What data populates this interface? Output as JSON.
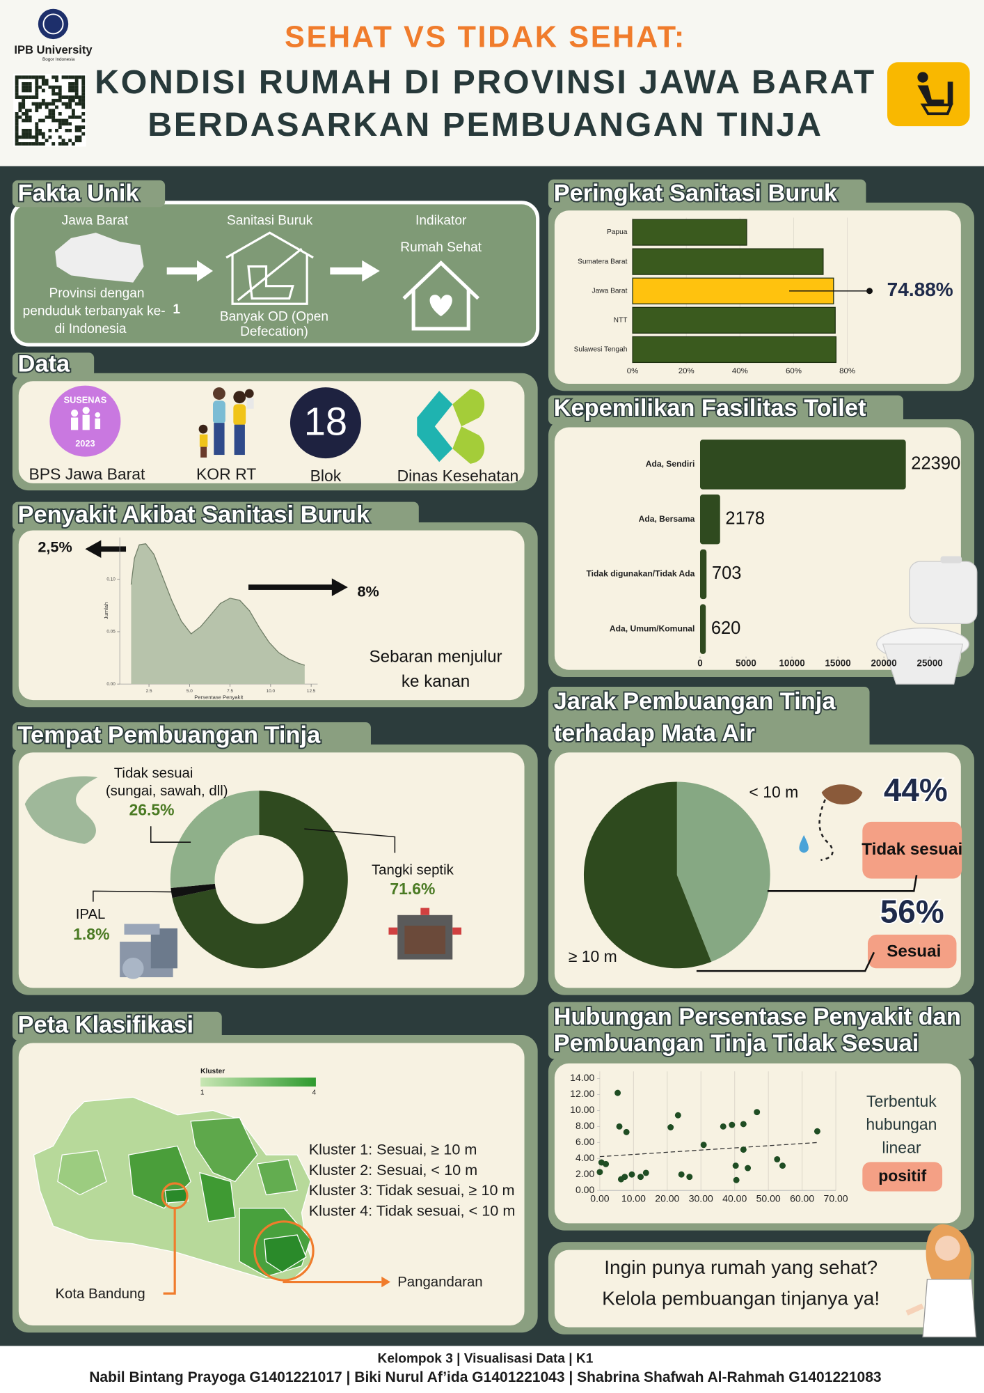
{
  "header": {
    "logo": "IPB University",
    "logo_sub": "Bogor Indonesia",
    "title": [
      "SEHAT VS TIDAK SEHAT:",
      "KONDISI RUMAH DI PROVINSI JAWA BARAT",
      "BERDASARKAN PEMBUANGAN TINJA"
    ]
  },
  "fakta_unik": {
    "title": "Fakta Unik",
    "jawa_barat": "Jawa Barat",
    "jawa_barat_text": [
      "Provinsi dengan",
      "penduduk terbanyak ke-",
      "di Indonesia"
    ],
    "rank": "1",
    "sanitasi": "Sanitasi Buruk",
    "sanitasi_text": [
      "Banyak OD (Open",
      "Defecation)"
    ],
    "indikator": [
      "Indikator",
      "Rumah Sehat"
    ]
  },
  "data": {
    "title": "Data",
    "susenas": "SUSENAS",
    "susenas_year": "2023",
    "sources": [
      "BPS Jawa Barat",
      "KOR RT",
      "Blok",
      "Dinas Kesehatan"
    ],
    "blok_count": 18
  },
  "peta": {
    "title": "Peta Klasifikasi",
    "legend_title": "Kluster",
    "legend_min": 1,
    "legend_max": 4,
    "klusters": [
      "Kluster 1:  Sesuai, ≥ 10 m",
      "Kluster 2:  Sesuai, < 10 m",
      "Kluster 3:  Tidak sesuai, ≥ 10 m",
      "Kluster 4:  Tidak sesuai, < 10 m"
    ],
    "kota": "Kota Bandung",
    "pangandaran": "Pangandaran"
  },
  "closing": [
    "Ingin punya rumah yang sehat?",
    "Kelola pembuangan tinjanya ya!"
  ],
  "footer": [
    "Kelompok 3 | Visualisasi Data | K1",
    "Nabil Bintang Prayoga G1401221017 | Biki Nurul Af’ida G1401221043 | Shabrina Shafwah Al-Rahmah G1401221083"
  ],
  "chart_data": [
    {
      "type": "area",
      "title": "Penyakit Akibat Sanitasi Buruk",
      "x_label": "Persentase Penyakit",
      "y_label": "Jumlah",
      "x": [
        1.4,
        1.6,
        1.9,
        2.3,
        2.8,
        3.3,
        3.9,
        4.5,
        5.1,
        5.7,
        6.3,
        6.9,
        7.5,
        8.1,
        8.7,
        9.3,
        9.9,
        10.5,
        11.1,
        11.7,
        12.1
      ],
      "values": [
        0.095,
        0.12,
        0.133,
        0.134,
        0.124,
        0.104,
        0.08,
        0.06,
        0.048,
        0.055,
        0.066,
        0.077,
        0.082,
        0.08,
        0.07,
        0.054,
        0.04,
        0.03,
        0.024,
        0.02,
        0.018
      ],
      "color": "#b7c3ab",
      "xlim": [
        0.7,
        12.9
      ],
      "xticks": [
        2.5,
        {
          "value": 5,
          "label": "5.0"
        },
        7.5,
        {
          "value": 10,
          "label": "10.0"
        },
        12.5
      ],
      "ylim": [
        0,
        0.14
      ],
      "yticks": [
        {
          "value": 0,
          "label": "0.00"
        },
        0.05,
        {
          "value": 0.1,
          "label": "0.10"
        }
      ],
      "annotations": [
        "2,5%",
        "8%",
        "Sebaran menjulur",
        "ke kanan"
      ]
    },
    {
      "type": "donut",
      "title": "Tempat Pembuangan Tinja",
      "categories": [
        "Tangki septik",
        "IPAL",
        "Tidak sesuai"
      ],
      "sublabels": [
        null,
        null,
        "(sungai, sawah, dll)"
      ],
      "values": [
        71.6,
        1.8,
        26.5
      ],
      "value_labels": [
        "71.6%",
        "1.8%",
        "26.5%"
      ],
      "colors": [
        "#2f4a1f",
        "#111111",
        "#8fb08a"
      ]
    },
    {
      "type": "hbar",
      "title": "Peringkat Sanitasi Buruk",
      "categories": [
        "Papua",
        "Sumatera Barat",
        "Jawa Barat",
        "NTT",
        "Sulawesi Tengah"
      ],
      "values": [
        42.5,
        71,
        74.88,
        75.5,
        75.8
      ],
      "value_labels": [
        null,
        null,
        "74.88%",
        null,
        null
      ],
      "colors": [
        "#3a5a1e",
        "#3a5a1e",
        "#ffc20e",
        "#3a5a1e",
        "#3a5a1e"
      ],
      "xlim": [
        0,
        82
      ],
      "xticks": [
        {
          "value": 0,
          "label": "0%"
        },
        {
          "value": 20,
          "label": "20%"
        },
        {
          "value": 40,
          "label": "40%"
        },
        {
          "value": 60,
          "label": "60%"
        },
        {
          "value": 80,
          "label": "80%"
        }
      ],
      "grid": true
    },
    {
      "type": "hbar",
      "title": "Kepemilikan Fasilitas Toilet",
      "categories": [
        "Ada, Sendiri",
        "Ada, Bersama",
        "Tidak digunakan/Tidak Ada",
        "Ada, Umum/Komunal"
      ],
      "values": [
        22390,
        2178,
        703,
        620
      ],
      "colors": [
        "#2f4a1f",
        "#2f4a1f",
        "#2f4a1f",
        "#2f4a1f"
      ],
      "xlim": [
        0,
        28000
      ],
      "xticks": [
        0,
        5000,
        10000,
        15000,
        20000,
        25000
      ],
      "grid": false
    },
    {
      "type": "pie",
      "title": [
        "Jarak Pembuangan Tinja",
        "terhadap Mata Air"
      ],
      "categories": [
        "< 10 m",
        "≥ 10 m"
      ],
      "values": [
        44,
        56
      ],
      "value_labels": [
        "44%",
        "56%"
      ],
      "status": [
        "Tidak sesuai",
        "Sesuai"
      ],
      "colors": [
        "#86a883",
        "#2e4a1e"
      ]
    },
    {
      "type": "scatter",
      "title": [
        "Hubungan Persentase Penyakit dan",
        "Pembuangan Tinja Tidak Sesuai"
      ],
      "x": [
        0,
        0.5,
        1.8,
        5.3,
        5.8,
        7.9,
        6.3,
        7.4,
        9.5,
        12.1,
        13.7,
        21,
        23.2,
        24.2,
        26.6,
        30.8,
        36.6,
        39.2,
        42.6,
        42.6,
        40.3,
        40.5,
        43.9,
        46.6,
        52.6,
        54.2,
        64.5
      ],
      "values": [
        2.3,
        3.5,
        3.3,
        12.2,
        8,
        7.3,
        1.4,
        1.7,
        2.0,
        1.7,
        2.2,
        7.9,
        9.4,
        2.0,
        1.7,
        5.7,
        8,
        8.2,
        8.3,
        5.1,
        3.1,
        1.3,
        2.8,
        9.8,
        3.9,
        3.1,
        7.4
      ],
      "color": "#1f4d23",
      "trendline": true,
      "xlim": [
        0,
        70
      ],
      "xticks": [
        {
          "value": 0,
          "label": "0.00"
        },
        {
          "value": 10,
          "label": "10.00"
        },
        {
          "value": 20,
          "label": "20.00"
        },
        {
          "value": 30,
          "label": "30.00"
        },
        {
          "value": 40,
          "label": "40.00"
        },
        {
          "value": 50,
          "label": "50.00"
        },
        {
          "value": 60,
          "label": "60.00"
        },
        {
          "value": 70,
          "label": "70.00"
        }
      ],
      "ylim": [
        0,
        14
      ],
      "yticks": [
        {
          "value": 0,
          "label": "0.00"
        },
        {
          "value": 2,
          "label": "2.00"
        },
        {
          "value": 4,
          "label": "4.00"
        },
        {
          "value": 6,
          "label": "6.00"
        },
        {
          "value": 8,
          "label": "8.00"
        },
        {
          "value": 10,
          "label": "10.00"
        },
        {
          "value": 12,
          "label": "12.00"
        },
        {
          "value": 14,
          "label": "14.00"
        }
      ],
      "grid": true,
      "notes": [
        "Terbentuk",
        "hubungan",
        "linear",
        "positif"
      ]
    }
  ]
}
